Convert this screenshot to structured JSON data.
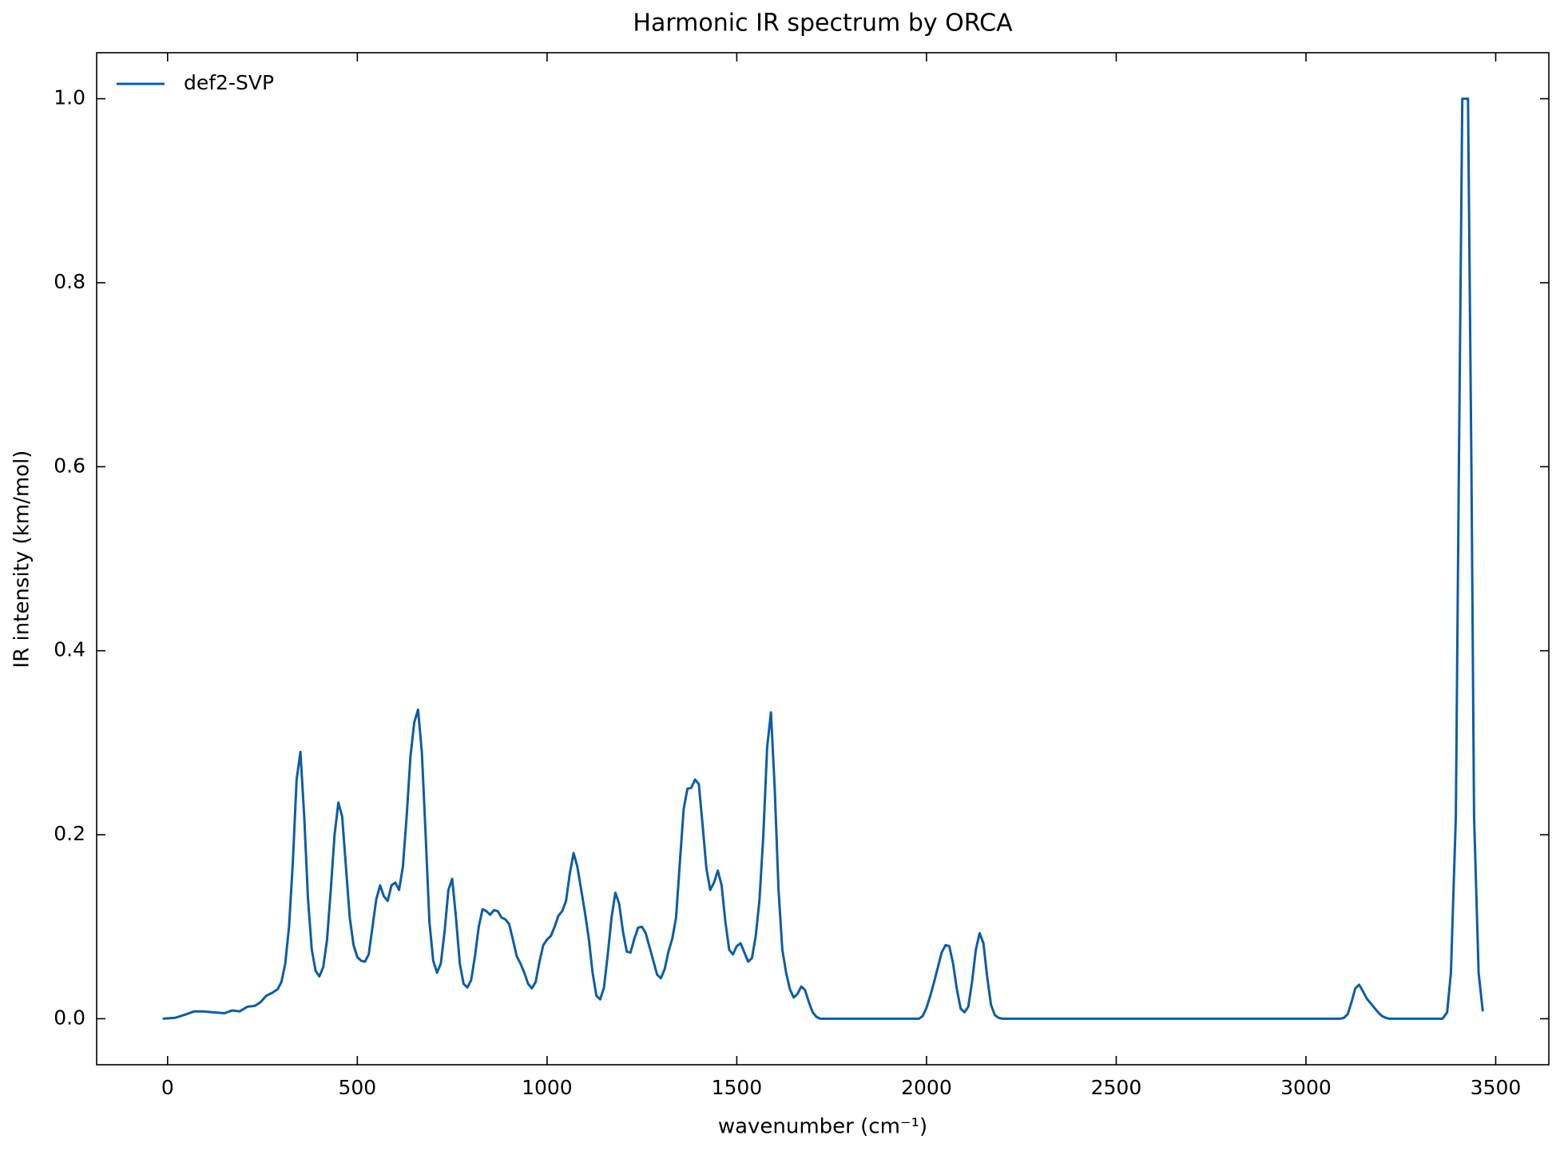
{
  "chart_data": {
    "type": "line",
    "title": "Harmonic IR spectrum by ORCA",
    "x_label": "wavenumber (cm⁻¹)",
    "y_label": "IR intensity (km/mol)",
    "xlim": [
      -187,
      3640
    ],
    "ylim": [
      -0.05,
      1.05
    ],
    "xticks": [
      0,
      500,
      1000,
      1500,
      2000,
      2500,
      3000,
      3500
    ],
    "yticks": [
      {
        "value": 0,
        "label": "0.0"
      },
      {
        "value": 0.2,
        "label": "0.2"
      },
      {
        "value": 0.4,
        "label": "0.4"
      },
      {
        "value": 0.6,
        "label": "0.6"
      },
      {
        "value": 0.8,
        "label": "0.8"
      },
      {
        "value": 1,
        "label": "1.0"
      }
    ],
    "legend": "upper left",
    "x": [
      -13,
      20,
      50,
      70,
      90,
      120,
      150,
      170,
      190,
      210,
      230,
      245,
      260,
      275,
      290,
      300,
      310,
      320,
      330,
      340,
      350,
      360,
      370,
      380,
      390,
      400,
      410,
      420,
      430,
      440,
      450,
      460,
      470,
      480,
      490,
      500,
      510,
      520,
      530,
      540,
      550,
      560,
      570,
      580,
      590,
      600,
      610,
      620,
      630,
      640,
      650,
      660,
      670,
      680,
      690,
      700,
      710,
      720,
      730,
      740,
      750,
      760,
      770,
      780,
      790,
      800,
      810,
      820,
      830,
      840,
      850,
      860,
      870,
      880,
      890,
      900,
      910,
      920,
      930,
      940,
      950,
      960,
      970,
      980,
      990,
      1000,
      1010,
      1020,
      1030,
      1040,
      1050,
      1060,
      1070,
      1080,
      1090,
      1100,
      1110,
      1120,
      1130,
      1140,
      1150,
      1160,
      1170,
      1180,
      1190,
      1200,
      1210,
      1220,
      1230,
      1240,
      1250,
      1260,
      1270,
      1280,
      1290,
      1300,
      1310,
      1320,
      1330,
      1340,
      1350,
      1360,
      1370,
      1380,
      1390,
      1400,
      1410,
      1420,
      1430,
      1440,
      1450,
      1460,
      1470,
      1480,
      1490,
      1500,
      1510,
      1520,
      1530,
      1540,
      1550,
      1560,
      1570,
      1580,
      1590,
      1600,
      1610,
      1620,
      1630,
      1640,
      1650,
      1660,
      1670,
      1680,
      1690,
      1700,
      1710,
      1720,
      1980,
      1990,
      2000,
      2010,
      2020,
      2030,
      2040,
      2050,
      2060,
      2070,
      2080,
      2090,
      2100,
      2110,
      2120,
      2130,
      2140,
      2150,
      2160,
      2170,
      2180,
      2190,
      2200,
      3090,
      3100,
      3110,
      3120,
      3130,
      3140,
      3150,
      3160,
      3170,
      3180,
      3190,
      3200,
      3210,
      3220,
      3360,
      3372,
      3382,
      3395,
      3403,
      3412,
      3427,
      3436,
      3443,
      3455,
      3466
    ],
    "series": [
      {
        "name": "def2-SVP",
        "color": "#0c5da5",
        "values": [
          0,
          0.001,
          0.005,
          0.008,
          0.008,
          0.007,
          0.006,
          0.009,
          0.008,
          0.013,
          0.014,
          0.018,
          0.025,
          0.028,
          0.032,
          0.04,
          0.06,
          0.1,
          0.17,
          0.26,
          0.29,
          0.22,
          0.13,
          0.075,
          0.052,
          0.046,
          0.056,
          0.085,
          0.14,
          0.2,
          0.235,
          0.22,
          0.165,
          0.11,
          0.08,
          0.067,
          0.063,
          0.062,
          0.07,
          0.1,
          0.13,
          0.145,
          0.133,
          0.128,
          0.145,
          0.148,
          0.14,
          0.165,
          0.22,
          0.285,
          0.322,
          0.336,
          0.29,
          0.2,
          0.105,
          0.063,
          0.05,
          0.06,
          0.095,
          0.14,
          0.152,
          0.11,
          0.06,
          0.038,
          0.034,
          0.042,
          0.068,
          0.1,
          0.119,
          0.117,
          0.113,
          0.118,
          0.117,
          0.11,
          0.108,
          0.103,
          0.086,
          0.068,
          0.06,
          0.05,
          0.038,
          0.033,
          0.04,
          0.062,
          0.08,
          0.086,
          0.09,
          0.1,
          0.112,
          0.117,
          0.128,
          0.158,
          0.18,
          0.165,
          0.14,
          0.115,
          0.087,
          0.05,
          0.025,
          0.021,
          0.034,
          0.07,
          0.11,
          0.137,
          0.125,
          0.095,
          0.073,
          0.072,
          0.087,
          0.099,
          0.1,
          0.093,
          0.078,
          0.063,
          0.048,
          0.044,
          0.054,
          0.073,
          0.087,
          0.11,
          0.17,
          0.228,
          0.25,
          0.251,
          0.26,
          0.255,
          0.21,
          0.163,
          0.14,
          0.148,
          0.161,
          0.145,
          0.105,
          0.075,
          0.07,
          0.079,
          0.082,
          0.072,
          0.062,
          0.066,
          0.09,
          0.13,
          0.2,
          0.295,
          0.333,
          0.25,
          0.14,
          0.075,
          0.05,
          0.032,
          0.023,
          0.027,
          0.035,
          0.031,
          0.018,
          0.007,
          0.002,
          0,
          0,
          0.003,
          0.012,
          0.025,
          0.04,
          0.056,
          0.072,
          0.08,
          0.079,
          0.06,
          0.032,
          0.011,
          0.007,
          0.013,
          0.04,
          0.075,
          0.093,
          0.082,
          0.045,
          0.015,
          0.004,
          0.001,
          0,
          0,
          0.001,
          0.005,
          0.018,
          0.033,
          0.037,
          0.03,
          0.022,
          0.017,
          0.012,
          0.007,
          0.003,
          0.001,
          0,
          0,
          0.007,
          0.05,
          0.22,
          0.6,
          1,
          1,
          0.6,
          0.22,
          0.05,
          0.008
        ]
      }
    ]
  }
}
